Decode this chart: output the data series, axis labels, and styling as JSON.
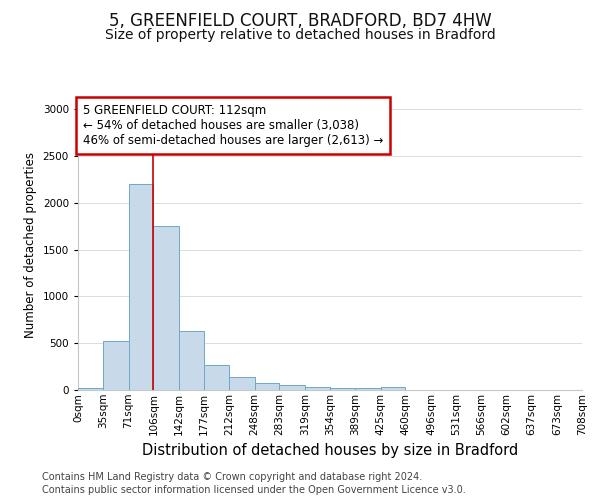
{
  "title1": "5, GREENFIELD COURT, BRADFORD, BD7 4HW",
  "title2": "Size of property relative to detached houses in Bradford",
  "xlabel": "Distribution of detached houses by size in Bradford",
  "ylabel": "Number of detached properties",
  "footnote1": "Contains HM Land Registry data © Crown copyright and database right 2024.",
  "footnote2": "Contains public sector information licensed under the Open Government Licence v3.0.",
  "annotation_line1": "5 GREENFIELD COURT: 112sqm",
  "annotation_line2": "← 54% of detached houses are smaller (3,038)",
  "annotation_line3": "46% of semi-detached houses are larger (2,613) →",
  "bar_edges": [
    0,
    35,
    71,
    106,
    142,
    177,
    212,
    248,
    283,
    319,
    354,
    389,
    425,
    460,
    496,
    531,
    566,
    602,
    637,
    673,
    708
  ],
  "bar_heights": [
    25,
    520,
    2200,
    1750,
    635,
    265,
    135,
    80,
    50,
    35,
    25,
    20,
    35,
    5,
    3,
    1,
    1,
    0,
    0,
    0
  ],
  "bar_color": "#c8daea",
  "bar_edge_color": "#6ea8c8",
  "vline_x": 106,
  "vline_color": "#cc0000",
  "ylim": [
    0,
    3100
  ],
  "yticks": [
    0,
    500,
    1000,
    1500,
    2000,
    2500,
    3000
  ],
  "bg_color": "#ffffff",
  "plot_bg_color": "#ffffff",
  "annotation_box_color": "#ffffff",
  "annotation_box_edge": "#cc0000",
  "title1_fontsize": 12,
  "title2_fontsize": 10,
  "xlabel_fontsize": 10.5,
  "ylabel_fontsize": 8.5,
  "tick_fontsize": 7.5,
  "annotation_fontsize": 8.5,
  "footnote_fontsize": 7
}
